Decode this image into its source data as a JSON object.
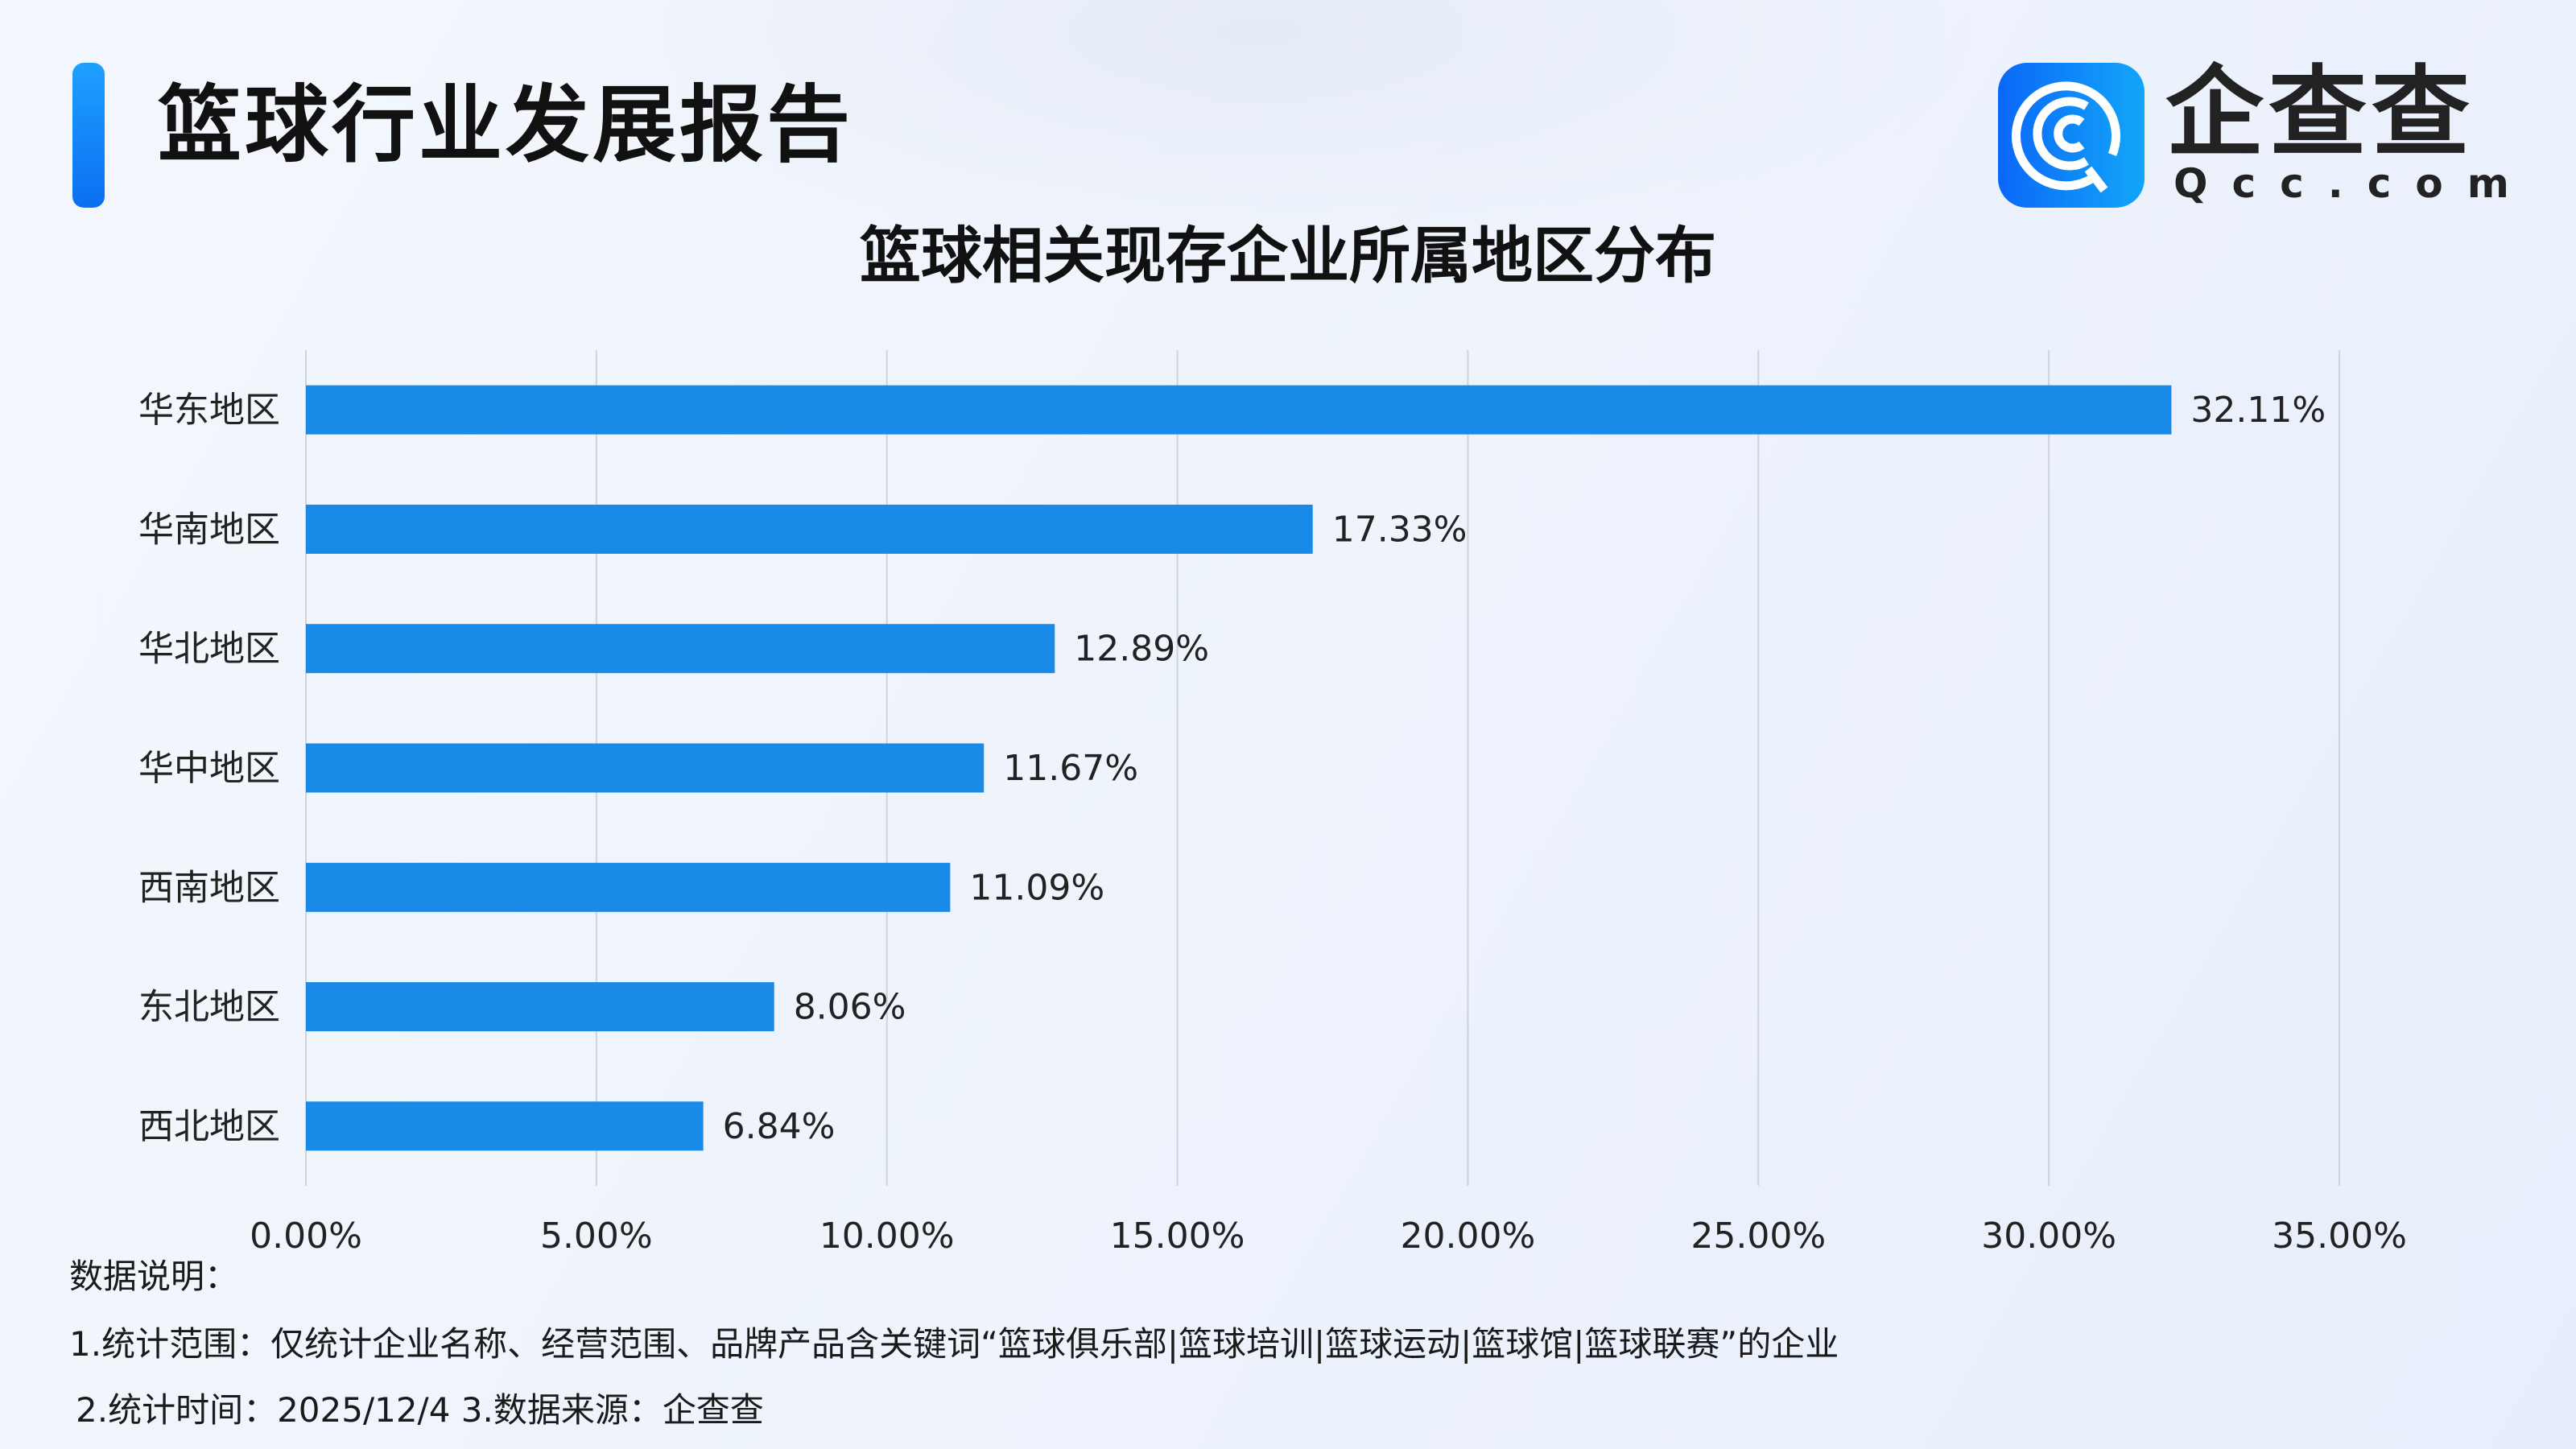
{
  "header": {
    "title": "篮球行业发展报告",
    "logo": {
      "cn": "企查查",
      "en": "Qcc.com"
    }
  },
  "chart_data": {
    "type": "bar",
    "orientation": "horizontal",
    "title": "篮球相关现存企业所属地区分布",
    "categories": [
      "华东地区",
      "华南地区",
      "华北地区",
      "华中地区",
      "西南地区",
      "东北地区",
      "西北地区"
    ],
    "values": [
      32.11,
      17.33,
      12.89,
      11.67,
      11.09,
      8.06,
      6.84
    ],
    "data_labels": [
      "32.11%",
      "17.33%",
      "12.89%",
      "11.67%",
      "11.09%",
      "8.06%",
      "6.84%"
    ],
    "xlim": [
      0,
      35
    ],
    "x_ticks": [
      "0.00%",
      "5.00%",
      "10.00%",
      "15.00%",
      "20.00%",
      "25.00%",
      "30.00%",
      "35.00%"
    ],
    "grid": "vertical",
    "bar_color": "#1a8ae8"
  },
  "notes": {
    "heading": "数据说明：",
    "line1": "1.统计范围：仅统计企业名称、经营范围、品牌产品含关键词“篮球俱乐部|篮球培训|篮球运动|篮球馆|篮球联赛”的企业",
    "line2": "2.统计时间：2025/12/4  3.数据来源：企查查"
  }
}
